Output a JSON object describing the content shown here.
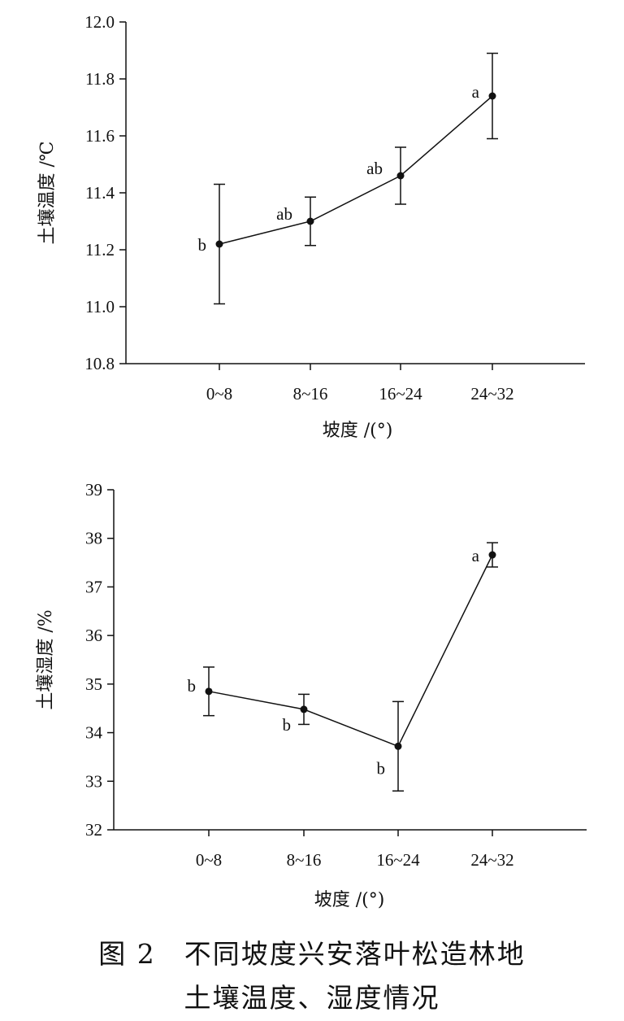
{
  "chart_data": [
    {
      "type": "line",
      "categories": [
        "0~8",
        "8~16",
        "16~24",
        "24~32"
      ],
      "values": [
        11.22,
        11.3,
        11.46,
        11.74
      ],
      "error": [
        0.21,
        0.085,
        0.1,
        0.15
      ],
      "significance": [
        "b",
        "ab",
        "ab",
        "a"
      ],
      "ylabel": "土壤温度 /℃",
      "xlabel": "坡度 /(°)",
      "ylim": [
        10.8,
        12.0
      ],
      "yticks": [
        "10.8",
        "11.0",
        "11.2",
        "11.4",
        "11.6",
        "11.8",
        "12.0"
      ]
    },
    {
      "type": "line",
      "categories": [
        "0~8",
        "8~16",
        "16~24",
        "24~32"
      ],
      "values": [
        34.85,
        34.48,
        33.72,
        37.66
      ],
      "error": [
        0.5,
        0.31,
        0.92,
        0.25
      ],
      "significance": [
        "b",
        "b",
        "b",
        "a"
      ],
      "ylabel": "土壤湿度 /%",
      "xlabel": "坡度 /(°)",
      "ylim": [
        32,
        39
      ],
      "yticks": [
        "32",
        "33",
        "34",
        "35",
        "36",
        "37",
        "38",
        "39"
      ]
    }
  ],
  "caption": {
    "line1": "图 2　不同坡度兴安落叶松造林地",
    "line2": "土壤温度、湿度情况"
  }
}
